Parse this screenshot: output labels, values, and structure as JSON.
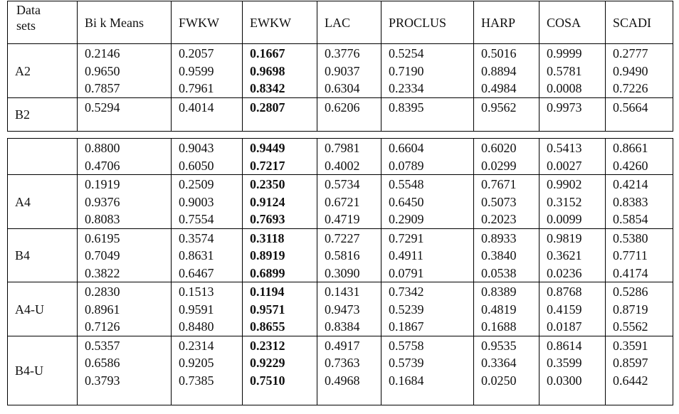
{
  "table1": {
    "header": [
      "Data sets",
      "Bi k Means",
      "FWKW",
      "EWKW",
      "LAC",
      "PROCLUS",
      "HARP",
      "COSA",
      "SCADI"
    ],
    "rows": [
      {
        "label": "A2",
        "cells": [
          [
            "0.2146",
            "0.9650",
            "0.7857"
          ],
          [
            "0.2057",
            "0.9599",
            "0.7961"
          ],
          [
            "0.1667",
            "0.9698",
            "0.8342"
          ],
          [
            "0.3776",
            "0.9037",
            "0.6304"
          ],
          [
            "0.5254",
            "0.7190",
            "0.2334"
          ],
          [
            "0.5016",
            "0.8894",
            "0.4984"
          ],
          [
            "0.9999",
            "0.5781",
            "0.0008"
          ],
          [
            "0.2777",
            "0.9490",
            "0.7226"
          ]
        ]
      },
      {
        "label": "B2",
        "cells": [
          [
            "0.5294"
          ],
          [
            "0.4014"
          ],
          [
            "0.2807"
          ],
          [
            "0.6206"
          ],
          [
            "0.8395"
          ],
          [
            "0.9562"
          ],
          [
            "0.9973"
          ],
          [
            "0.5664"
          ]
        ]
      }
    ]
  },
  "table2": {
    "rows": [
      {
        "cells": [
          [
            "0.8800",
            "0.4706"
          ],
          [
            "0.9043",
            "0.6050"
          ],
          [
            "0.9449",
            "0.7217"
          ],
          [
            "0.7981",
            "0.4002"
          ],
          [
            "0.6604",
            "0.0789"
          ],
          [
            "0.6020",
            "0.0299"
          ],
          [
            "0.5413",
            "0.0027"
          ],
          [
            "0.8661",
            "0.4260"
          ]
        ]
      },
      {
        "label": "A4",
        "cells": [
          [
            "0.1919",
            "0.9376",
            "0.8083"
          ],
          [
            "0.2509",
            "0.9003",
            "0.7554"
          ],
          [
            "0.2350",
            "0.9124",
            "0.7693"
          ],
          [
            "0.5734",
            "0.6721",
            "0.4719"
          ],
          [
            "0.5548",
            "0.6450",
            "0.2909"
          ],
          [
            "0.7671",
            "0.5073",
            "0.2023"
          ],
          [
            "0.9902",
            "0.3152",
            "0.0099"
          ],
          [
            "0.4214",
            "0.8383",
            "0.5854"
          ]
        ]
      },
      {
        "label": "B4",
        "cells": [
          [
            "0.6195",
            "0.7049",
            "0.3822"
          ],
          [
            "0.3574",
            "0.8631",
            "0.6467"
          ],
          [
            "0.3118",
            "0.8919",
            "0.6899"
          ],
          [
            "0.7227",
            "0.5816",
            "0.3090"
          ],
          [
            "0.7291",
            "0.4911",
            "0.0791"
          ],
          [
            "0.8933",
            "0.3840",
            "0.0538"
          ],
          [
            "0.9819",
            "0.3621",
            "0.0236"
          ],
          [
            "0.5380",
            "0.7711",
            "0.4174"
          ]
        ]
      },
      {
        "label": "A4-U",
        "cells": [
          [
            "0.2830",
            "0.8961",
            "0.7126"
          ],
          [
            "0.1513",
            "0.9591",
            "0.8480"
          ],
          [
            "0.1194",
            "0.9571",
            "0.8655"
          ],
          [
            "0.1431",
            "0.9473",
            "0.8384"
          ],
          [
            "0.7342",
            "0.5239",
            "0.1867"
          ],
          [
            "0.8389",
            "0.4819",
            "0.1688"
          ],
          [
            "0.8768",
            "0.4159",
            "0.0187"
          ],
          [
            "0.5286",
            "0.8719",
            "0.5562"
          ]
        ]
      },
      {
        "label": "B4-U",
        "cells": [
          [
            "0.5357",
            "0.6586",
            "0.3793"
          ],
          [
            "0.2314",
            "0.9205",
            "0.7385"
          ],
          [
            "0.2312",
            "0.9229",
            "0.7510"
          ],
          [
            "0.4917",
            "0.7363",
            "0.4968"
          ],
          [
            "0.5758",
            "0.5739",
            "0.1684"
          ],
          [
            "0.9535",
            "0.3364",
            "0.0250"
          ],
          [
            "0.8614",
            "0.3599",
            "0.0300"
          ],
          [
            "0.3591",
            "0.8597",
            "0.6442"
          ]
        ]
      }
    ]
  }
}
